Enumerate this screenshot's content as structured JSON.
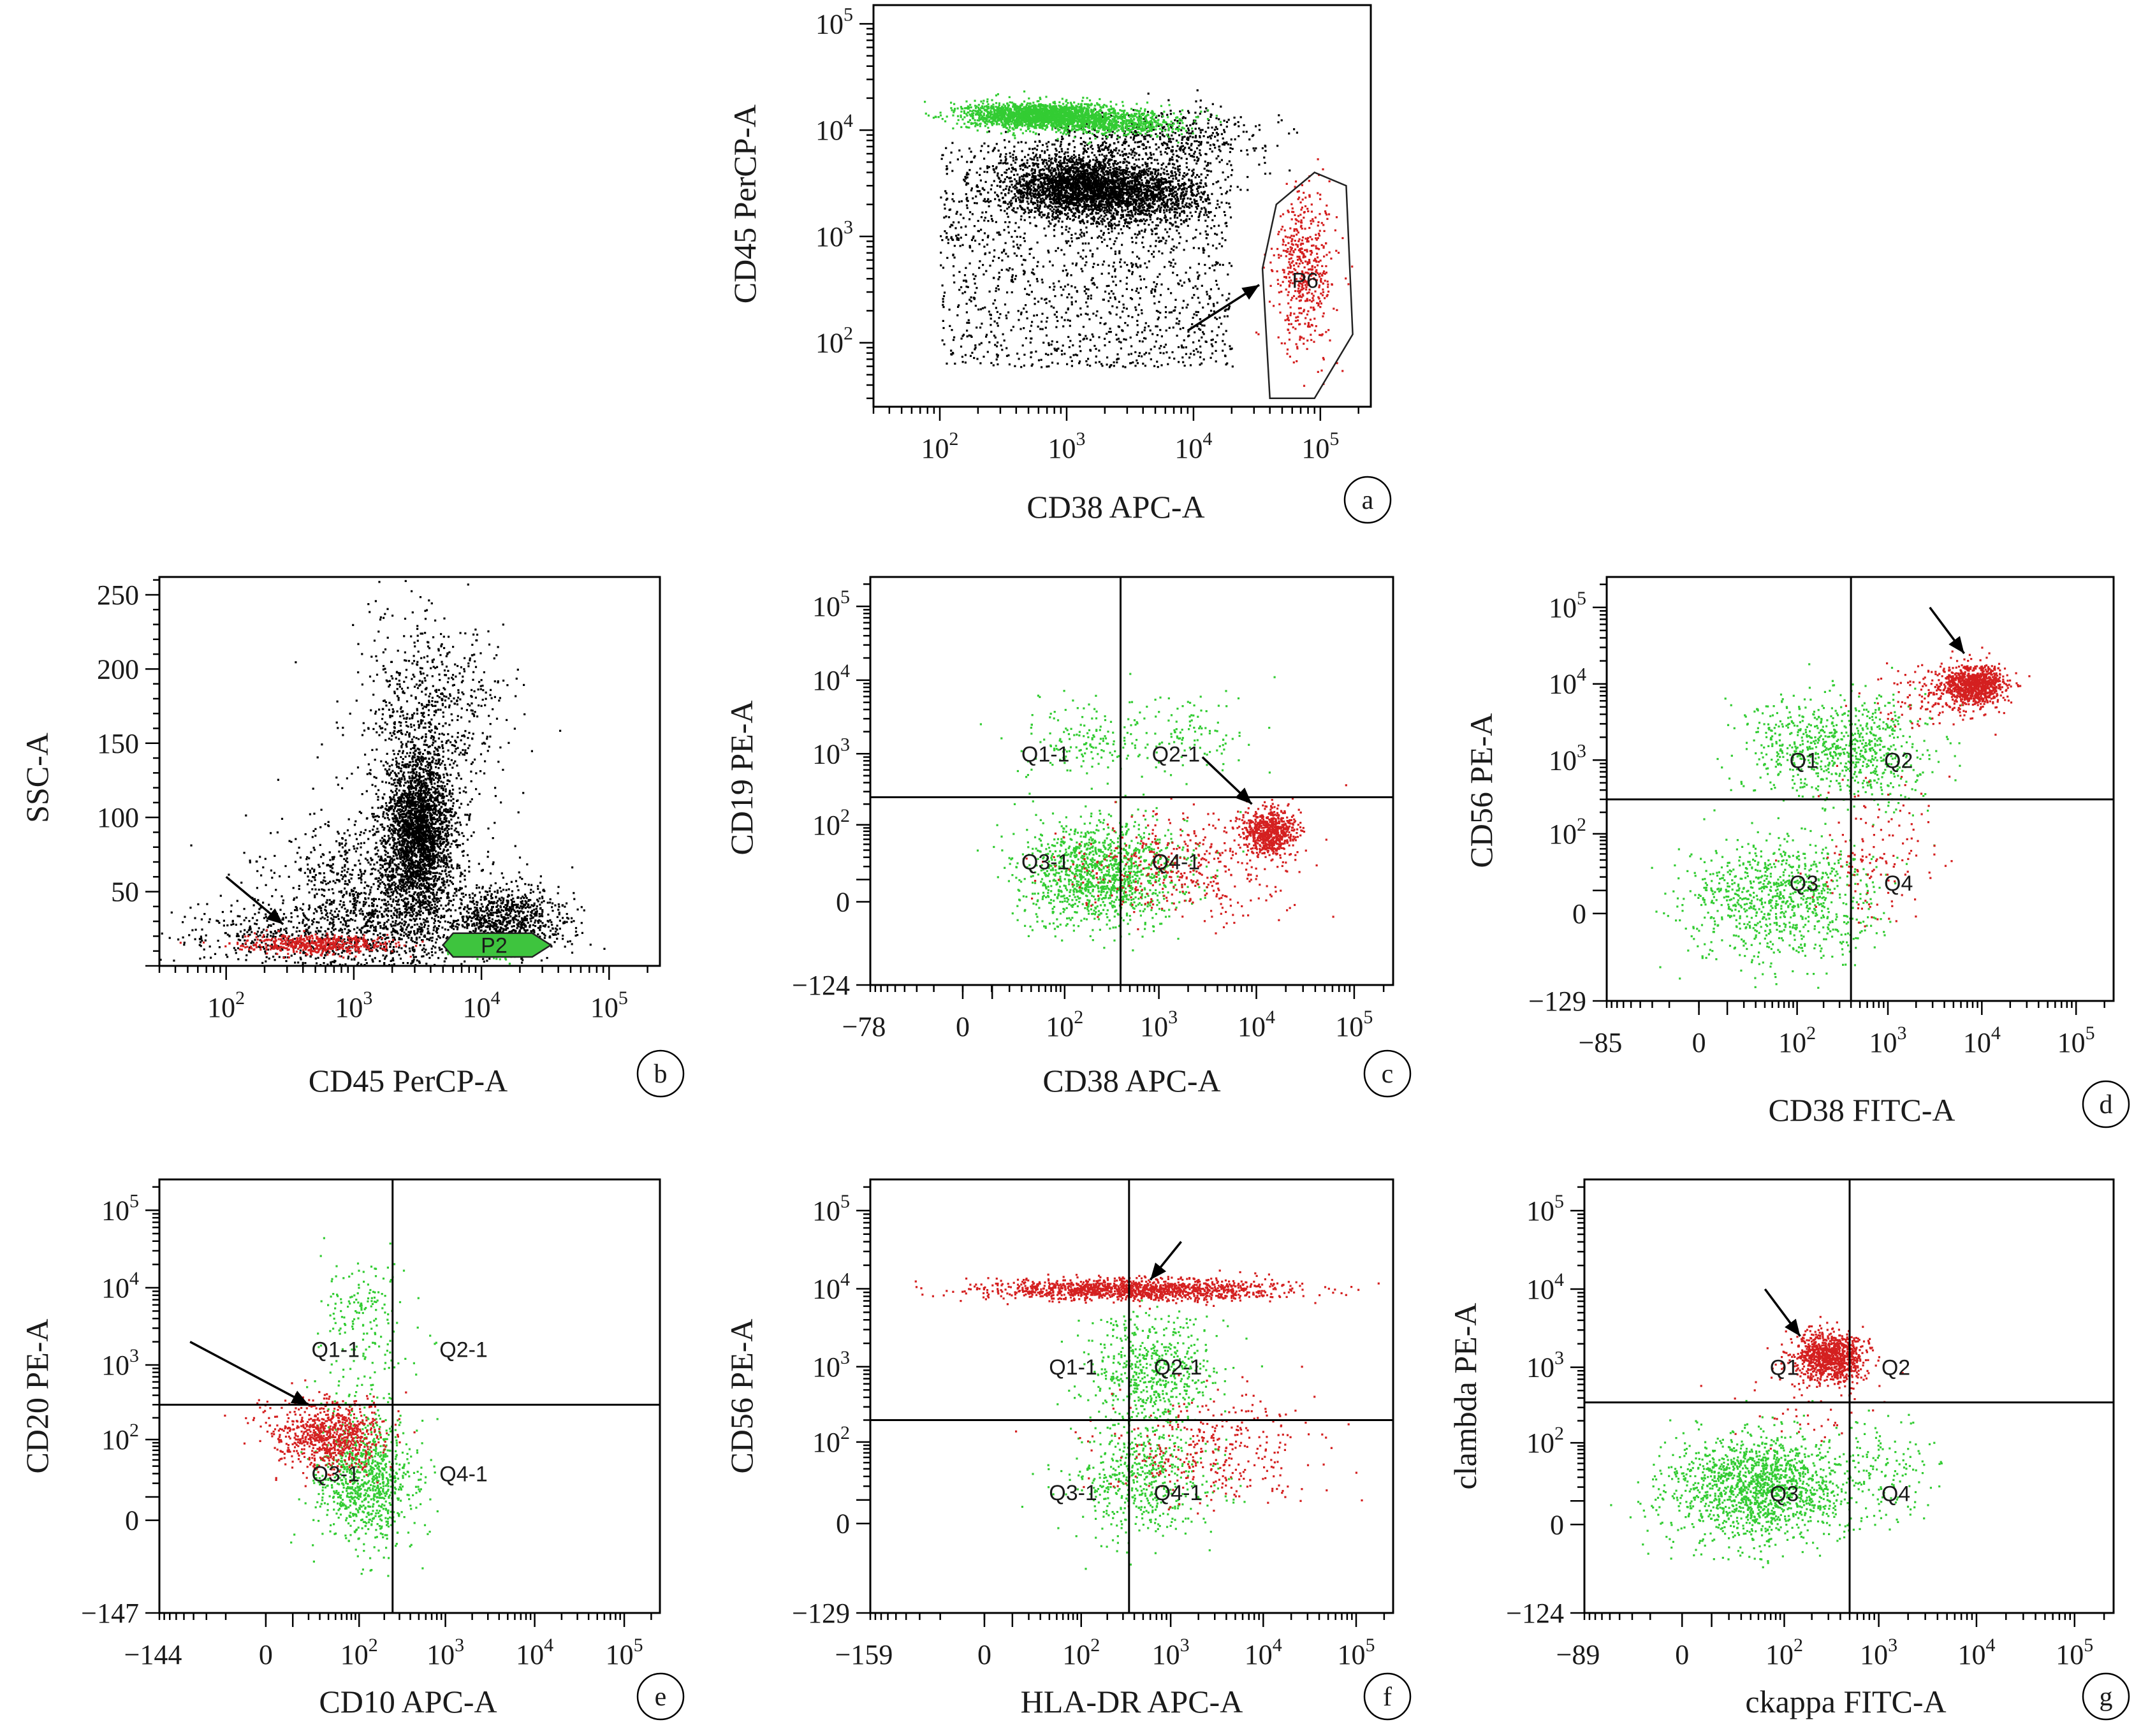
{
  "chart_data": [
    {
      "id": "a",
      "letter": "a",
      "type": "scatter",
      "xlabel": "CD38 APC-A",
      "ylabel": "CD45 PerCP-A",
      "xscale": "log",
      "yscale": "log",
      "xlim": [
        30,
        250000
      ],
      "ylim": [
        25,
        150000
      ],
      "xticks": [
        {
          "v": 100,
          "e": "2"
        },
        {
          "v": 1000,
          "e": "3"
        },
        {
          "v": 10000,
          "e": "4"
        },
        {
          "v": 100000,
          "e": "5"
        }
      ],
      "yticks": [
        {
          "v": 100,
          "e": "2"
        },
        {
          "v": 1000,
          "e": "3"
        },
        {
          "v": 10000,
          "e": "4"
        },
        {
          "v": 100000,
          "e": "5"
        }
      ],
      "gates": [
        {
          "label": "P6",
          "shape": "polygon",
          "points": [
            [
              40000,
              30
            ],
            [
              90000,
              30
            ],
            [
              180000,
              120
            ],
            [
              160000,
              3000
            ],
            [
              90000,
              4000
            ],
            [
              45000,
              2000
            ],
            [
              35000,
              500
            ]
          ]
        }
      ],
      "populations": [
        {
          "color": "#000000",
          "n": 1600,
          "cx": [
            100,
            20000
          ],
          "cy": [
            60,
            8000
          ],
          "dist": "uniform"
        },
        {
          "color": "#000000",
          "n": 2200,
          "cx": 1200,
          "cy": 3000,
          "sx": 0.28,
          "sy": 0.14
        },
        {
          "color": "#000000",
          "n": 1100,
          "cx": 4000,
          "cy": 2500,
          "sx": 0.25,
          "sy": 0.14
        },
        {
          "color": "#000000",
          "n": 500,
          "cx": 5000,
          "cy": 9000,
          "sx": 0.45,
          "sy": 0.13
        },
        {
          "color": "#33cc33",
          "n": 2000,
          "cx": 600,
          "cy": 14000,
          "sx": 0.28,
          "sy": 0.06
        },
        {
          "color": "#33cc33",
          "n": 600,
          "cx": 2500,
          "cy": 12000,
          "sx": 0.25,
          "sy": 0.06
        },
        {
          "color": "#d42020",
          "n": 500,
          "cx": 75000,
          "cy": 500,
          "sx": 0.12,
          "sy": 0.38
        }
      ],
      "annotations": [
        {
          "type": "arrow",
          "label": "arrow",
          "from": [
            9000,
            130
          ],
          "to": [
            33000,
            350
          ]
        }
      ]
    },
    {
      "id": "b",
      "letter": "b",
      "type": "scatter",
      "xlabel": "CD45 PerCP-A",
      "ylabel": "SSC-A",
      "xscale": "log",
      "yscale": "linear",
      "xlim": [
        30,
        250000
      ],
      "ylim": [
        0,
        262
      ],
      "xticks": [
        {
          "v": 100,
          "e": "2"
        },
        {
          "v": 1000,
          "e": "3"
        },
        {
          "v": 10000,
          "e": "4"
        },
        {
          "v": 100000,
          "e": "5"
        }
      ],
      "yticks": [
        {
          "v": 50,
          "t": "50"
        },
        {
          "v": 100,
          "t": "100"
        },
        {
          "v": 150,
          "t": "150"
        },
        {
          "v": 200,
          "t": "200"
        },
        {
          "v": 250,
          "t": "250"
        }
      ],
      "gates": [
        {
          "label": "P2",
          "shape": "polygon",
          "points": [
            [
              6000,
              6
            ],
            [
              25000,
              6
            ],
            [
              35000,
              14
            ],
            [
              25000,
              22
            ],
            [
              6000,
              22
            ],
            [
              5000,
              14
            ]
          ]
        }
      ],
      "populations": [
        {
          "color": "#000000",
          "n": 2600,
          "cx": 3200,
          "cy": 90,
          "sx": 0.13,
          "sy": 28
        },
        {
          "color": "#000000",
          "n": 1500,
          "cx": 1500,
          "cy": 40,
          "sx": 0.4,
          "sy": 30
        },
        {
          "color": "#000000",
          "n": 900,
          "cx": 15000,
          "cy": 30,
          "sx": 0.25,
          "sy": 12
        },
        {
          "color": "#000000",
          "n": 700,
          "cx": 4000,
          "cy": 170,
          "sx": 0.3,
          "sy": 35
        },
        {
          "color": "#000000",
          "n": 350,
          "cx": 300,
          "cy": 20,
          "sx": 0.45,
          "sy": 10
        },
        {
          "color": "#d42020",
          "n": 500,
          "cx": 500,
          "cy": 15,
          "sx": 0.3,
          "sy": 3
        },
        {
          "color": "#33cc33",
          "n": 500,
          "cx": 12000,
          "cy": 13,
          "sx": 0.13,
          "sy": 3
        }
      ],
      "annotations": [
        {
          "type": "arrow",
          "label": "arrow",
          "from": [
            100,
            60
          ],
          "to": [
            280,
            28
          ]
        }
      ]
    },
    {
      "id": "c",
      "letter": "c",
      "type": "scatter",
      "xlabel": "CD38 APC-A",
      "ylabel": "CD19 PE-A",
      "xscale": "biexponential",
      "yscale": "biexponential",
      "xlim": [
        -78,
        250000
      ],
      "ylim": [
        -124,
        250000
      ],
      "xticks": [
        {
          "v": -78,
          "t": "−78"
        },
        {
          "v": 0,
          "t": "0"
        },
        {
          "v": 100,
          "e": "2"
        },
        {
          "v": 1000,
          "e": "3"
        },
        {
          "v": 10000,
          "e": "4"
        },
        {
          "v": 100000,
          "e": "5"
        }
      ],
      "yticks": [
        {
          "v": -124,
          "t": "−124"
        },
        {
          "v": 0,
          "t": "0"
        },
        {
          "v": 100,
          "e": "2"
        },
        {
          "v": 1000,
          "e": "3"
        },
        {
          "v": 10000,
          "e": "4"
        },
        {
          "v": 100000,
          "e": "5"
        }
      ],
      "quad": {
        "x": 400,
        "y": 250
      },
      "quad_labels": [
        {
          "text": "Q1-1",
          "x": 60,
          "y": 1000
        },
        {
          "text": "Q2-1",
          "x": 1500,
          "y": 1000
        },
        {
          "text": "Q3-1",
          "x": 60,
          "y": 25
        },
        {
          "text": "Q4-1",
          "x": 1500,
          "y": 25
        }
      ],
      "populations": [
        {
          "color": "#33cc33",
          "n": 1300,
          "cx": 250,
          "cy": 15,
          "sx": 0.42,
          "sy": 0.35
        },
        {
          "color": "#d42020",
          "n": 400,
          "cx": 1500,
          "cy": 20,
          "sx": 0.55,
          "sy": 0.35
        },
        {
          "color": "#d42020",
          "n": 700,
          "cx": 13000,
          "cy": 80,
          "sx": 0.14,
          "sy": 0.16
        },
        {
          "color": "#33cc33",
          "n": 160,
          "cx": 150,
          "cy": 1500,
          "sx": 0.35,
          "sy": 0.3
        },
        {
          "color": "#33cc33",
          "n": 110,
          "cx": 2000,
          "cy": 2000,
          "sx": 0.35,
          "sy": 0.3
        }
      ],
      "annotations": [
        {
          "type": "arrow",
          "label": "arrow",
          "from": [
            2800,
            900
          ],
          "to": [
            9000,
            200
          ]
        }
      ]
    },
    {
      "id": "d",
      "letter": "d",
      "type": "scatter",
      "xlabel": "CD38 FITC-A",
      "ylabel": "CD56 PE-A",
      "xscale": "biexponential",
      "yscale": "biexponential",
      "xlim": [
        -85,
        250000
      ],
      "ylim": [
        -129,
        250000
      ],
      "xticks": [
        {
          "v": -85,
          "t": "−85"
        },
        {
          "v": 0,
          "t": "0"
        },
        {
          "v": 100,
          "e": "2"
        },
        {
          "v": 1000,
          "e": "3"
        },
        {
          "v": 10000,
          "e": "4"
        },
        {
          "v": 100000,
          "e": "5"
        }
      ],
      "yticks": [
        {
          "v": -129,
          "t": "−129"
        },
        {
          "v": 0,
          "t": "0"
        },
        {
          "v": 100,
          "e": "2"
        },
        {
          "v": 1000,
          "e": "3"
        },
        {
          "v": 10000,
          "e": "4"
        },
        {
          "v": 100000,
          "e": "5"
        }
      ],
      "quad": {
        "x": 400,
        "y": 300
      },
      "quad_labels": [
        {
          "text": "Q1",
          "x": 120,
          "y": 1000
        },
        {
          "text": "Q2",
          "x": 1300,
          "y": 1000
        },
        {
          "text": "Q3",
          "x": 120,
          "y": 15
        },
        {
          "text": "Q4",
          "x": 1300,
          "y": 15
        }
      ],
      "populations": [
        {
          "color": "#33cc33",
          "n": 900,
          "cx": 60,
          "cy": 5,
          "sx": 0.5,
          "sy": 0.4
        },
        {
          "color": "#33cc33",
          "n": 450,
          "cx": 150,
          "cy": 1500,
          "sx": 0.4,
          "sy": 0.35
        },
        {
          "color": "#33cc33",
          "n": 350,
          "cx": 700,
          "cy": 1200,
          "sx": 0.35,
          "sy": 0.35
        },
        {
          "color": "#d42020",
          "n": 900,
          "cx": 8000,
          "cy": 10000,
          "sx": 0.16,
          "sy": 0.13
        },
        {
          "color": "#d42020",
          "n": 150,
          "cx": 3000,
          "cy": 7000,
          "sx": 0.35,
          "sy": 0.2
        },
        {
          "color": "#d42020",
          "n": 140,
          "cx": 700,
          "cy": 60,
          "sx": 0.35,
          "sy": 0.45
        }
      ],
      "annotations": [
        {
          "type": "arrow",
          "label": "arrow",
          "from": [
            2800,
            100000
          ],
          "to": [
            6500,
            25000
          ]
        }
      ]
    },
    {
      "id": "e",
      "letter": "e",
      "type": "scatter",
      "xlabel": "CD10 APC-A",
      "ylabel": "CD20 PE-A",
      "xscale": "biexponential",
      "yscale": "biexponential",
      "xlim": [
        -144,
        250000
      ],
      "ylim": [
        -147,
        250000
      ],
      "xticks": [
        {
          "v": -144,
          "t": "−144"
        },
        {
          "v": 0,
          "t": "0"
        },
        {
          "v": 100,
          "e": "2"
        },
        {
          "v": 1000,
          "e": "3"
        },
        {
          "v": 10000,
          "e": "4"
        },
        {
          "v": 100000,
          "e": "5"
        }
      ],
      "yticks": [
        {
          "v": -147,
          "t": "−147"
        },
        {
          "v": 0,
          "t": "0"
        },
        {
          "v": 100,
          "e": "2"
        },
        {
          "v": 1000,
          "e": "3"
        },
        {
          "v": 10000,
          "e": "4"
        },
        {
          "v": 100000,
          "e": "5"
        }
      ],
      "quad": {
        "x": 250,
        "y": 300
      },
      "quad_labels": [
        {
          "text": "Q1-1",
          "x": 50,
          "y": 1600
        },
        {
          "text": "Q2-1",
          "x": 1600,
          "y": 1600
        },
        {
          "text": "Q3-1",
          "x": 50,
          "y": 30
        },
        {
          "text": "Q4-1",
          "x": 1600,
          "y": 30
        }
      ],
      "populations": [
        {
          "color": "#33cc33",
          "n": 900,
          "cx": 120,
          "cy": 25,
          "sx": 0.28,
          "sy": 0.4
        },
        {
          "color": "#d42020",
          "n": 800,
          "cx": 40,
          "cy": 120,
          "sx": 0.3,
          "sy": 0.22
        },
        {
          "color": "#33cc33",
          "n": 130,
          "cx": 100,
          "cy": 6000,
          "sx": 0.22,
          "sy": 0.3
        },
        {
          "color": "#33cc33",
          "n": 60,
          "cx": 100,
          "cy": 800,
          "sx": 0.35,
          "sy": 0.35
        }
      ],
      "annotations": [
        {
          "type": "arrow",
          "label": "arrow",
          "from": [
            -60,
            2000
          ],
          "to": [
            20,
            300
          ]
        }
      ]
    },
    {
      "id": "f",
      "letter": "f",
      "type": "scatter",
      "xlabel": "HLA-DR APC-A",
      "ylabel": "CD56 PE-A",
      "xscale": "biexponential",
      "yscale": "biexponential",
      "xlim": [
        -159,
        250000
      ],
      "ylim": [
        -129,
        250000
      ],
      "xticks": [
        {
          "v": -159,
          "t": "−159"
        },
        {
          "v": 0,
          "t": "0"
        },
        {
          "v": 100,
          "e": "2"
        },
        {
          "v": 1000,
          "e": "3"
        },
        {
          "v": 10000,
          "e": "4"
        },
        {
          "v": 100000,
          "e": "5"
        }
      ],
      "yticks": [
        {
          "v": -129,
          "t": "−129"
        },
        {
          "v": 0,
          "t": "0"
        },
        {
          "v": 100,
          "e": "2"
        },
        {
          "v": 1000,
          "e": "3"
        },
        {
          "v": 10000,
          "e": "4"
        },
        {
          "v": 100000,
          "e": "5"
        }
      ],
      "quad": {
        "x": 350,
        "y": 200
      },
      "quad_labels": [
        {
          "text": "Q1-1",
          "x": 80,
          "y": 1000
        },
        {
          "text": "Q2-1",
          "x": 1200,
          "y": 1000
        },
        {
          "text": "Q3-1",
          "x": 80,
          "y": 15
        },
        {
          "text": "Q4-1",
          "x": 1200,
          "y": 15
        }
      ],
      "populations": [
        {
          "color": "#d42020",
          "n": 1400,
          "cx": 400,
          "cy": 10000,
          "sx": 0.8,
          "sy": 0.07
        },
        {
          "color": "#33cc33",
          "n": 550,
          "cx": 500,
          "cy": 30,
          "sx": 0.35,
          "sy": 0.4
        },
        {
          "color": "#33cc33",
          "n": 550,
          "cx": 600,
          "cy": 800,
          "sx": 0.35,
          "sy": 0.35
        },
        {
          "color": "#d42020",
          "n": 350,
          "cx": 3000,
          "cy": 80,
          "sx": 0.55,
          "sy": 0.35
        }
      ],
      "annotations": [
        {
          "type": "arrow",
          "label": "arrow",
          "from": [
            1300,
            40000
          ],
          "to": [
            600,
            13000
          ]
        }
      ]
    },
    {
      "id": "g",
      "letter": "g",
      "type": "scatter",
      "xlabel": "ckappa FITC-A",
      "ylabel": "clambda PE-A",
      "xscale": "biexponential",
      "yscale": "biexponential",
      "xlim": [
        -89,
        250000
      ],
      "ylim": [
        -124,
        250000
      ],
      "xticks": [
        {
          "v": -89,
          "t": "−89"
        },
        {
          "v": 0,
          "t": "0"
        },
        {
          "v": 100,
          "e": "2"
        },
        {
          "v": 1000,
          "e": "3"
        },
        {
          "v": 10000,
          "e": "4"
        },
        {
          "v": 100000,
          "e": "5"
        }
      ],
      "yticks": [
        {
          "v": -124,
          "t": "−124"
        },
        {
          "v": 0,
          "t": "0"
        },
        {
          "v": 100,
          "e": "2"
        },
        {
          "v": 1000,
          "e": "3"
        },
        {
          "v": 10000,
          "e": "4"
        },
        {
          "v": 100000,
          "e": "5"
        }
      ],
      "quad": {
        "x": 500,
        "y": 350
      },
      "quad_labels": [
        {
          "text": "Q1",
          "x": 100,
          "y": 1000
        },
        {
          "text": "Q2",
          "x": 1500,
          "y": 1000
        },
        {
          "text": "Q3",
          "x": 100,
          "y": 15
        },
        {
          "text": "Q4",
          "x": 1500,
          "y": 15
        }
      ],
      "populations": [
        {
          "color": "#33cc33",
          "n": 1500,
          "cx": 50,
          "cy": 20,
          "sx": 0.45,
          "sy": 0.35
        },
        {
          "color": "#d42020",
          "n": 1000,
          "cx": 300,
          "cy": 1400,
          "sx": 0.18,
          "sy": 0.16
        },
        {
          "color": "#33cc33",
          "n": 150,
          "cx": 1200,
          "cy": 40,
          "sx": 0.3,
          "sy": 0.35
        },
        {
          "color": "#d42020",
          "n": 40,
          "cx": 150,
          "cy": 300,
          "sx": 0.3,
          "sy": 0.25
        }
      ],
      "annotations": [
        {
          "type": "arrow",
          "label": "arrow",
          "from": [
            60,
            10000
          ],
          "to": [
            150,
            2500
          ]
        }
      ]
    }
  ]
}
